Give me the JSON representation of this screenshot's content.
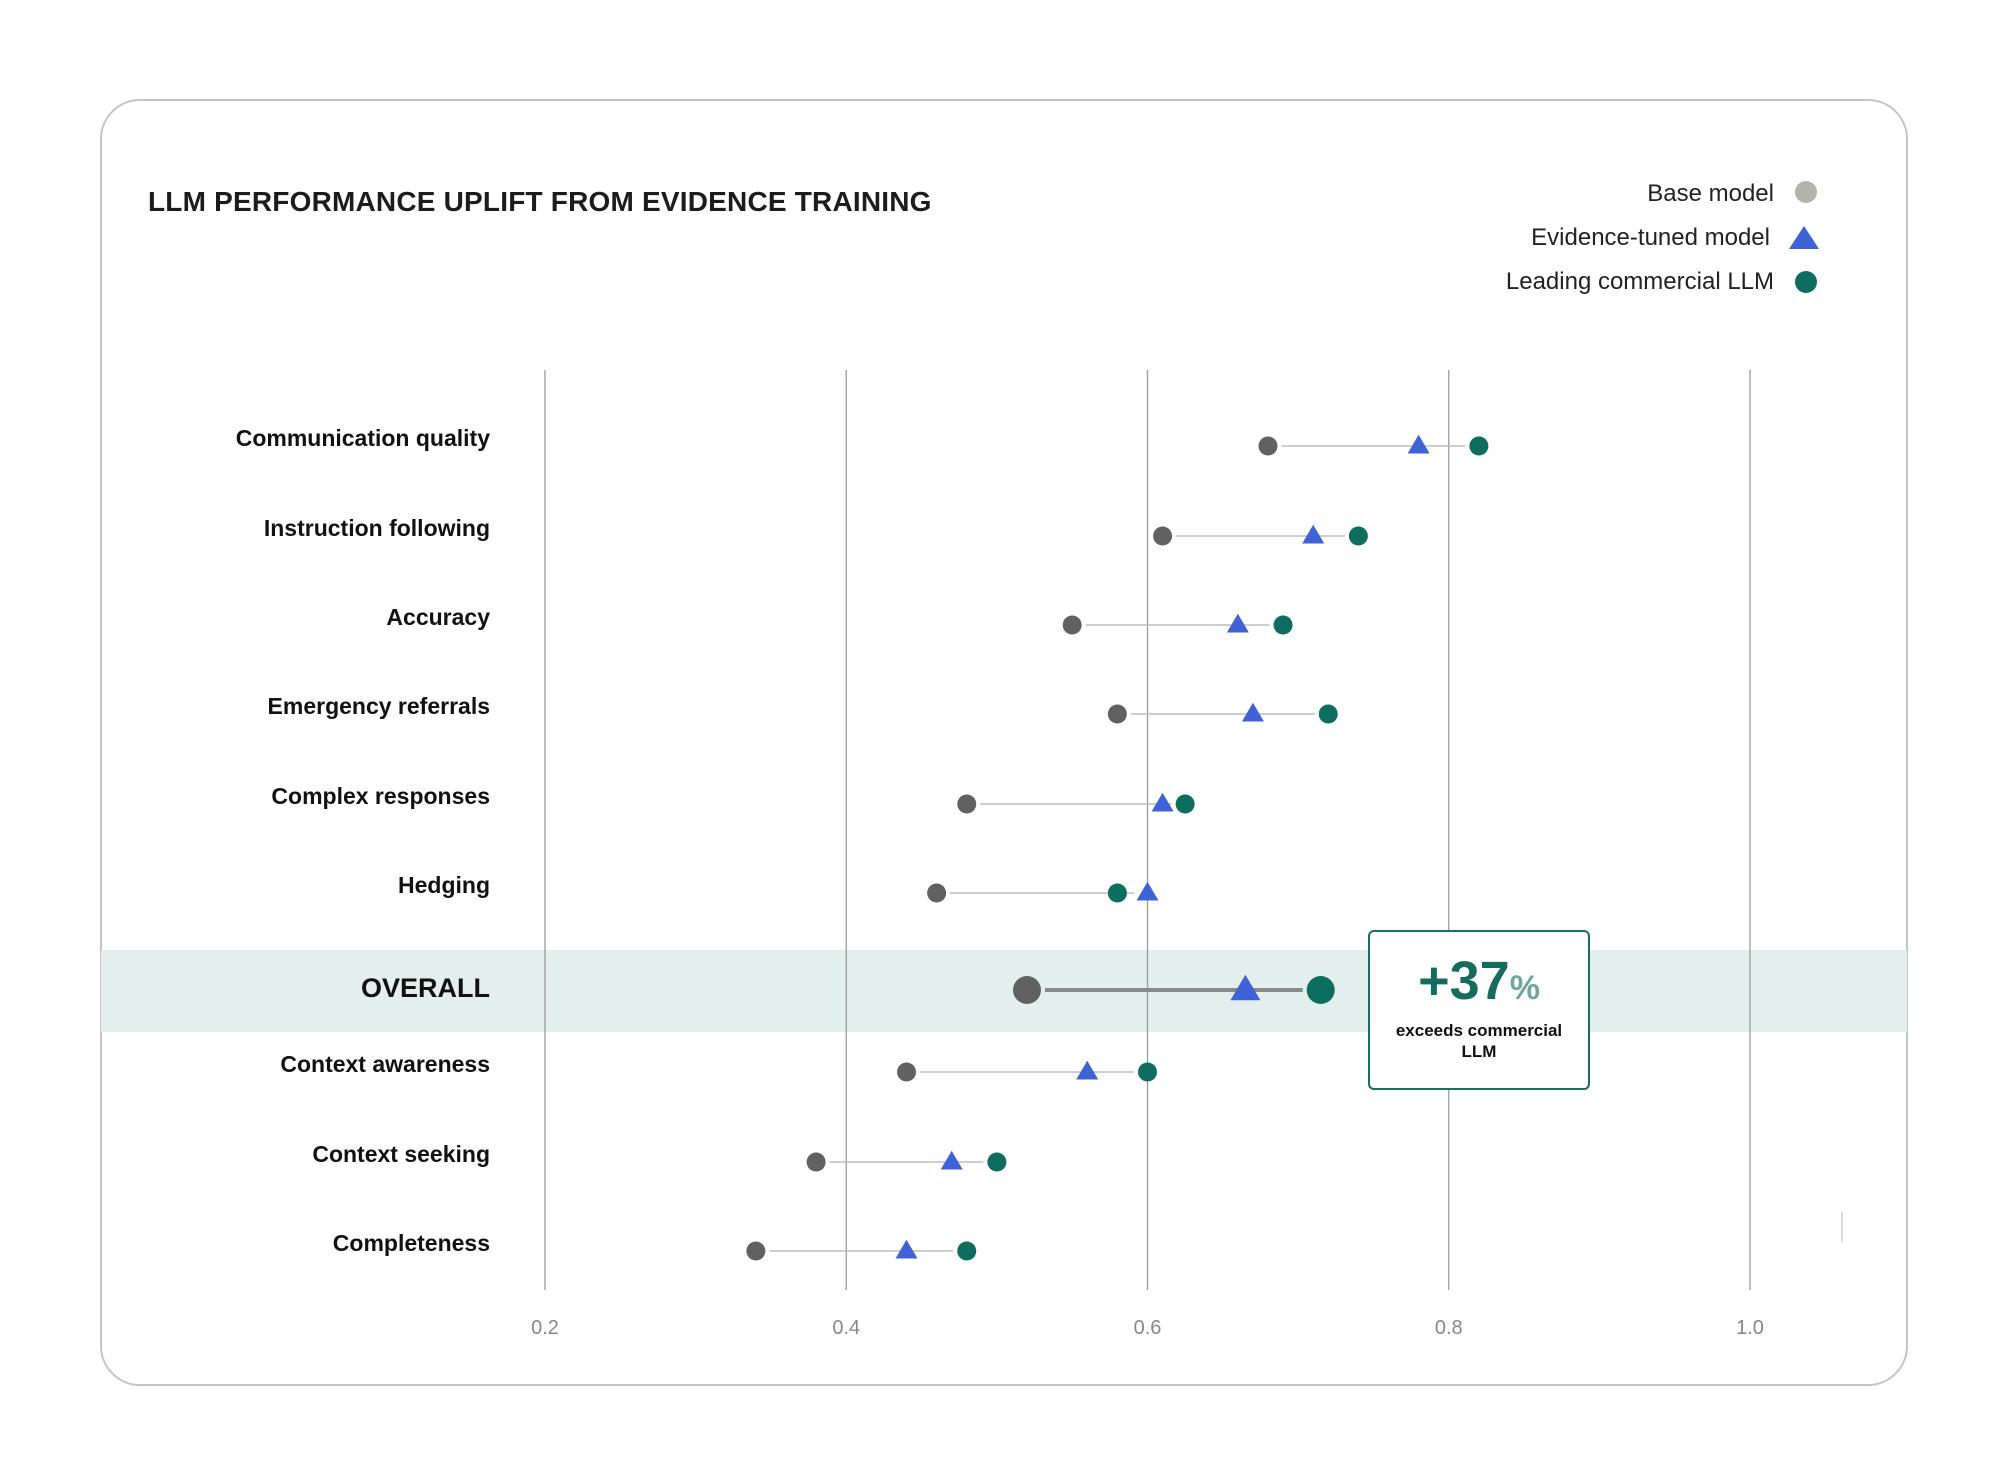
{
  "title": "LLM PERFORMANCE UPLIFT FROM EVIDENCE TRAINING",
  "legend": [
    {
      "label": "Base model",
      "marker": "circle",
      "color": "#b3b3a8"
    },
    {
      "label": "Evidence-tuned model",
      "marker": "triangle",
      "color": "#3f62d6"
    },
    {
      "label": "Leading commercial LLM",
      "marker": "circle",
      "color": "#0d6e5f"
    }
  ],
  "callout": {
    "value": "+37",
    "unit": "%",
    "text": "exceeds commercial LLM"
  },
  "colors": {
    "base": "#616161",
    "tuned": "#3f62d6",
    "commercial": "#0d6e5f",
    "highlight_band": "#e3efec",
    "gridline": "#9a9a9a",
    "connector": "#bdbdbd"
  },
  "chart_data": {
    "type": "dot-plot",
    "title": "LLM PERFORMANCE UPLIFT FROM EVIDENCE TRAINING",
    "x_axis": {
      "range": [
        0.2,
        1.0
      ],
      "ticks": [
        "0.2",
        "0.4",
        "0.6",
        "0.8",
        "1.0"
      ]
    },
    "grid": "vertical",
    "legend_position": "top-right",
    "highlight_category": "OVERALL",
    "categories": [
      "Communication quality",
      "Instruction following",
      "Accuracy",
      "Emergency referrals",
      "Complex responses",
      "Hedging",
      "OVERALL",
      "Context awareness",
      "Context seeking",
      "Completeness"
    ],
    "series": [
      {
        "name": "Base model",
        "values": [
          0.68,
          0.61,
          0.55,
          0.58,
          0.48,
          0.46,
          0.52,
          0.44,
          0.38,
          0.34
        ]
      },
      {
        "name": "Evidence-tuned model",
        "values": [
          0.78,
          0.71,
          0.66,
          0.67,
          0.61,
          0.6,
          0.665,
          0.56,
          0.47,
          0.44
        ]
      },
      {
        "name": "Leading commercial LLM",
        "values": [
          0.82,
          0.74,
          0.69,
          0.72,
          0.625,
          0.58,
          0.715,
          0.6,
          0.5,
          0.48
        ]
      }
    ]
  }
}
